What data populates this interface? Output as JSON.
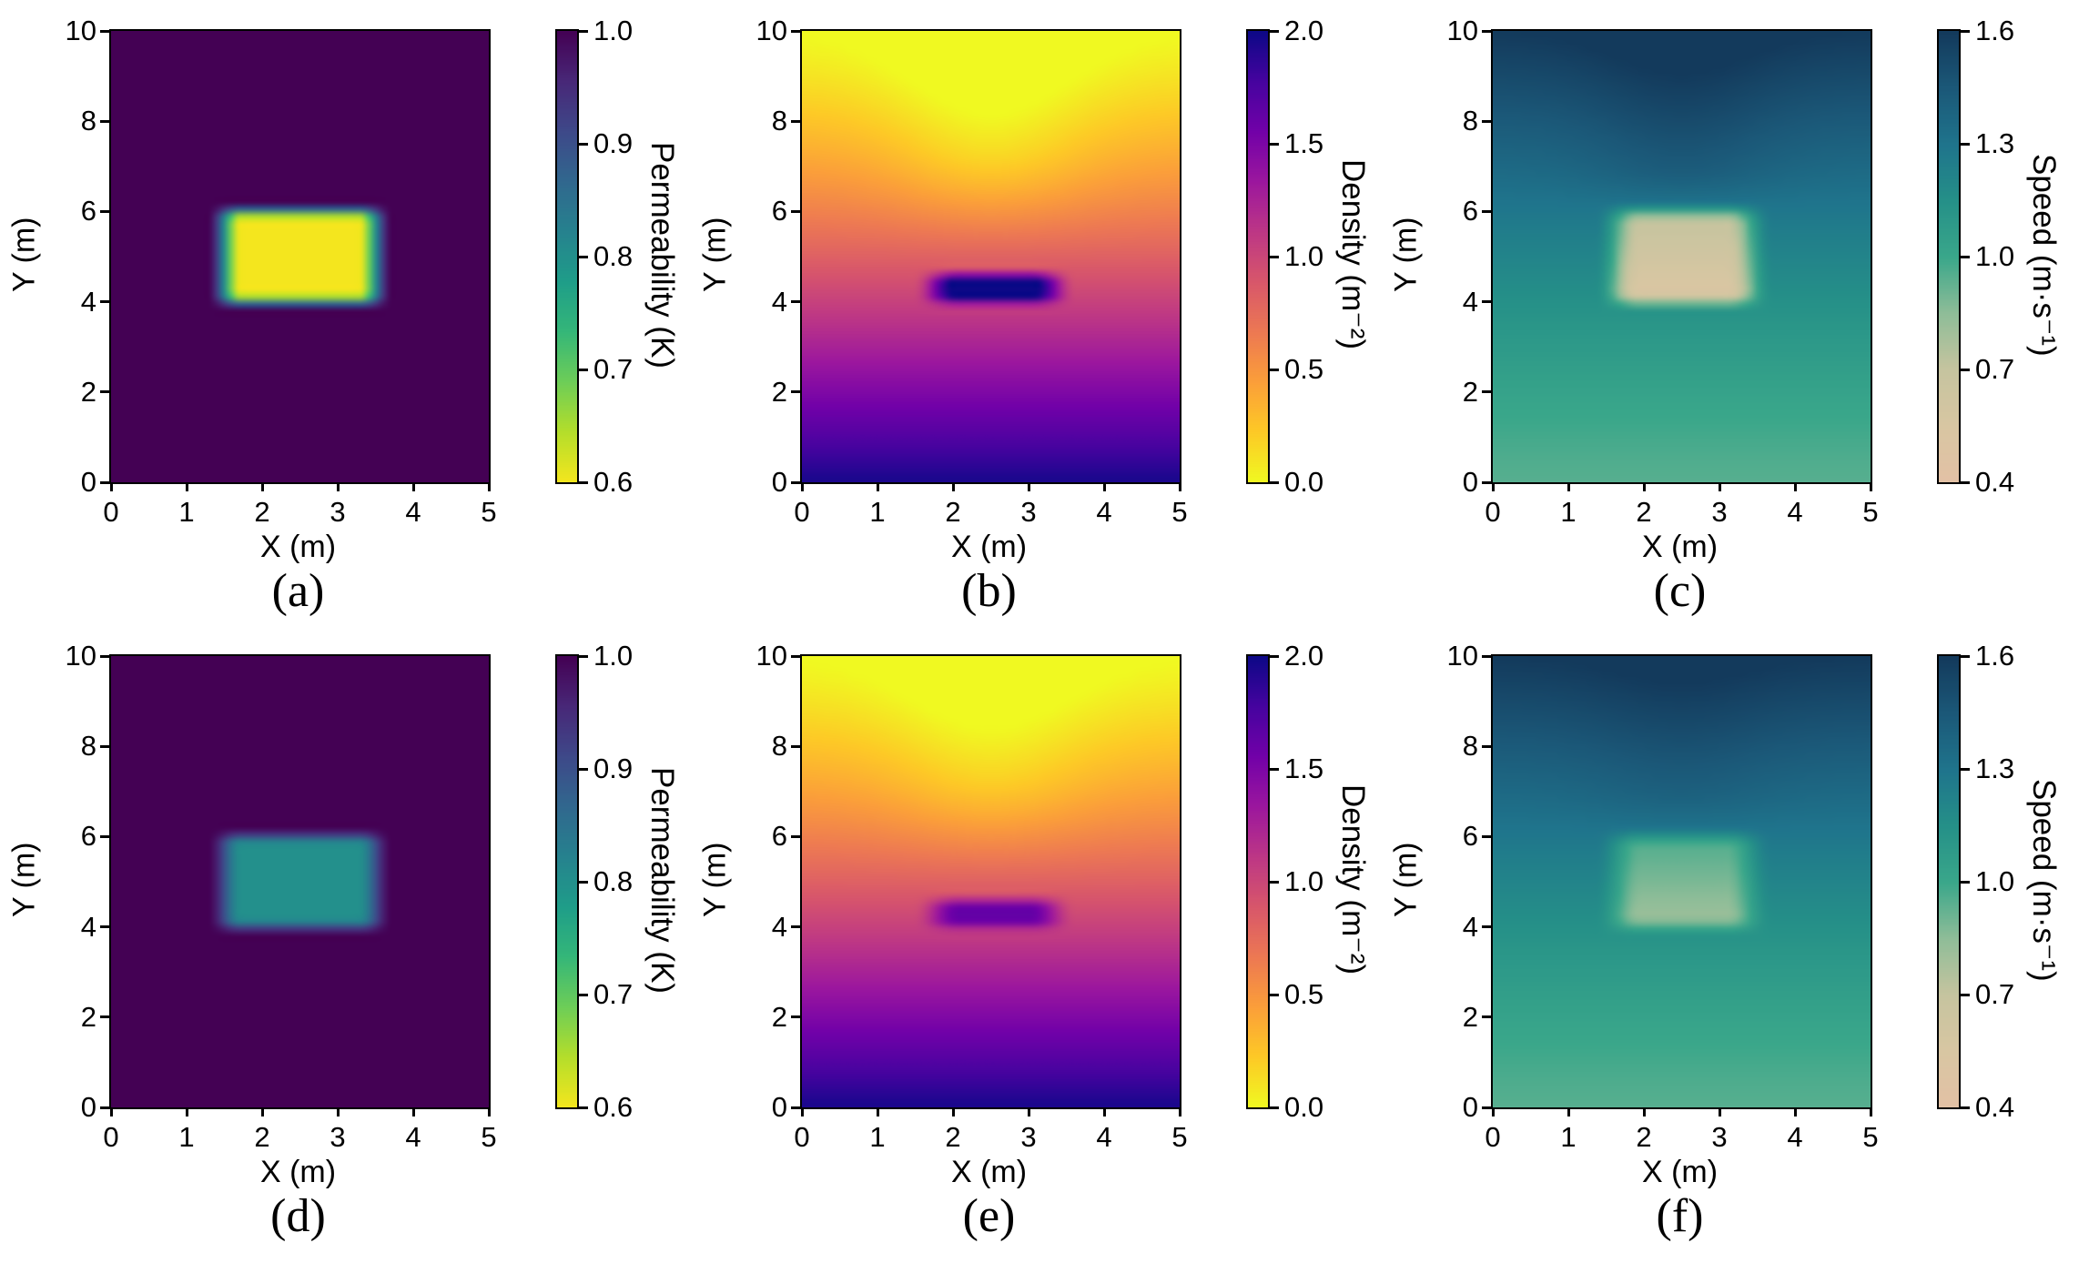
{
  "figure": {
    "background": "#ffffff",
    "axis_color": "#000000",
    "captions": [
      "(a)",
      "(b)",
      "(c)",
      "(d)",
      "(e)",
      "(f)"
    ]
  },
  "axes": {
    "x": {
      "label": "X (m)",
      "range": [
        0,
        5
      ],
      "tick_labels": [
        "0",
        "1",
        "2",
        "3",
        "4",
        "5"
      ]
    },
    "y": {
      "label": "Y (m)",
      "range": [
        0,
        10
      ],
      "tick_labels": [
        "0",
        "2",
        "4",
        "6",
        "8",
        "10"
      ]
    }
  },
  "colormaps": {
    "viridis_r": [
      "#f4e61e",
      "#b5de2b",
      "#6ece58",
      "#35b779",
      "#1f9e89",
      "#26828e",
      "#31688e",
      "#3e4989",
      "#482878",
      "#440154"
    ],
    "plasma_r": [
      "#f0f921",
      "#fdca26",
      "#fb9f3a",
      "#ed7953",
      "#d8576b",
      "#bd3786",
      "#9c179e",
      "#7201a8",
      "#46039f",
      "#0d0887"
    ],
    "speed": [
      "#e3c1a5",
      "#d8c6a2",
      "#c6c49f",
      "#8fbd98",
      "#3aa78a",
      "#259088",
      "#1f748c",
      "#1b5878",
      "#133a5c"
    ]
  },
  "chart_data": [
    {
      "id": "a",
      "caption": "(a)",
      "type": "heatmap",
      "xlabel": "X (m)",
      "ylabel": "Y (m)",
      "xlim": [
        0,
        5
      ],
      "ylim": [
        0,
        10
      ],
      "colorbar": {
        "label": "Permeability (K)",
        "min": 0.6,
        "max": 1.0,
        "tick_labels_top_to_bottom": [
          "1.0",
          "0.9",
          "0.8",
          "0.7",
          "0.6"
        ]
      },
      "colormap": "viridis_r",
      "field_summary": "Uniform K=1.0 with low-permeability rectangular inclusion K=0.6 spanning x 1.5-3.5 m, y 4-6 m (smoothed edges)",
      "render": {
        "kind": "perm",
        "bg": 1.0,
        "inc": 0.6,
        "rect": [
          1.5,
          3.5,
          4.0,
          6.0
        ]
      }
    },
    {
      "id": "b",
      "caption": "(b)",
      "type": "heatmap",
      "xlabel": "X (m)",
      "ylabel": "Y (m)",
      "xlim": [
        0,
        5
      ],
      "ylim": [
        0,
        10
      ],
      "colorbar": {
        "label": "Density (m⁻²)",
        "min": 0.0,
        "max": 2.0,
        "tick_labels_top_to_bottom": [
          "2.0",
          "1.5",
          "1.0",
          "0.5",
          "0.0"
        ]
      },
      "colormap": "plasma_r",
      "field_summary": "Density 0 at y=10 increasing to ~2 at y=0; congestion blob reaching 2.0 just below obstacle at x 1.8-3.3 m, y 4.0-4.6 m; lower density channel above obstacle center",
      "render": {
        "kind": "dens",
        "amp": 1.96,
        "pow": 1.25,
        "dipAmp": 0.24,
        "blobAmp": 1.2,
        "blobRect": [
          1.78,
          3.32,
          4.02,
          4.58
        ]
      }
    },
    {
      "id": "c",
      "caption": "(c)",
      "type": "heatmap",
      "xlabel": "X (m)",
      "ylabel": "Y (m)",
      "xlim": [
        0,
        5
      ],
      "ylim": [
        0,
        10
      ],
      "colorbar": {
        "label": "Speed (m·s⁻¹)",
        "min": 0.4,
        "max": 1.6,
        "tick_labels_top_to_bottom": [
          "1.6",
          "1.3",
          "1.0",
          "0.7",
          "0.4"
        ]
      },
      "colormap": "speed",
      "field_summary": "Speed ~1.6 at y=10 decreasing to ~0.95 at y=0; slow region ~0.5 inside obstacle x 1.65-3.4 m, y 4-6 m; slightly faster plume above obstacle",
      "render": {
        "kind": "speed",
        "v0": 0.95,
        "v1": 1.6,
        "pow": 1.3,
        "plumeAmp": 0.08,
        "patchRect": [
          1.65,
          3.4,
          4.0,
          6.0
        ],
        "patchLo": 0.5,
        "patchHi": 0.73
      }
    },
    {
      "id": "d",
      "caption": "(d)",
      "type": "heatmap",
      "xlabel": "X (m)",
      "ylabel": "Y (m)",
      "xlim": [
        0,
        5
      ],
      "ylim": [
        0,
        10
      ],
      "colorbar": {
        "label": "Permeability (K)",
        "min": 0.6,
        "max": 1.0,
        "tick_labels_top_to_bottom": [
          "1.0",
          "0.9",
          "0.8",
          "0.7",
          "0.6"
        ]
      },
      "colormap": "viridis_r",
      "field_summary": "Uniform K=1.0 with milder inclusion K=0.8 spanning x 1.5-3.5 m, y 4-6 m (smoothed edges)",
      "render": {
        "kind": "perm",
        "bg": 1.0,
        "inc": 0.8,
        "rect": [
          1.5,
          3.5,
          4.0,
          6.0
        ]
      }
    },
    {
      "id": "e",
      "caption": "(e)",
      "type": "heatmap",
      "xlabel": "X (m)",
      "ylabel": "Y (m)",
      "xlim": [
        0,
        5
      ],
      "ylim": [
        0,
        10
      ],
      "colorbar": {
        "label": "Density (m⁻²)",
        "min": 0.0,
        "max": 2.0,
        "tick_labels_top_to_bottom": [
          "2.0",
          "1.5",
          "1.0",
          "0.5",
          "0.0"
        ]
      },
      "colormap": "plasma_r",
      "field_summary": "Same gradient as (b) but weaker congestion blob (~1.6) below obstacle at x 1.8-3.3 m, y 4.0-4.6 m",
      "render": {
        "kind": "dens",
        "amp": 1.96,
        "pow": 1.25,
        "dipAmp": 0.2,
        "blobAmp": 0.66,
        "blobRect": [
          1.78,
          3.32,
          4.02,
          4.58
        ]
      }
    },
    {
      "id": "f",
      "caption": "(f)",
      "type": "heatmap",
      "xlabel": "X (m)",
      "ylabel": "Y (m)",
      "xlim": [
        0,
        5
      ],
      "ylim": [
        0,
        10
      ],
      "colorbar": {
        "label": "Speed (m·s⁻¹)",
        "min": 0.4,
        "max": 1.6,
        "tick_labels_top_to_bottom": [
          "1.6",
          "1.3",
          "1.0",
          "0.7",
          "0.4"
        ]
      },
      "colormap": "speed",
      "field_summary": "Same gradient as (c) but milder slow region (~0.8-1.0) inside obstacle x 1.65-3.4 m, y 4-6 m",
      "render": {
        "kind": "speed",
        "v0": 0.95,
        "v1": 1.6,
        "pow": 1.3,
        "plumeAmp": 0.05,
        "patchRect": [
          1.65,
          3.4,
          4.0,
          6.0
        ],
        "patchLo": 0.8,
        "patchHi": 0.97
      }
    }
  ]
}
